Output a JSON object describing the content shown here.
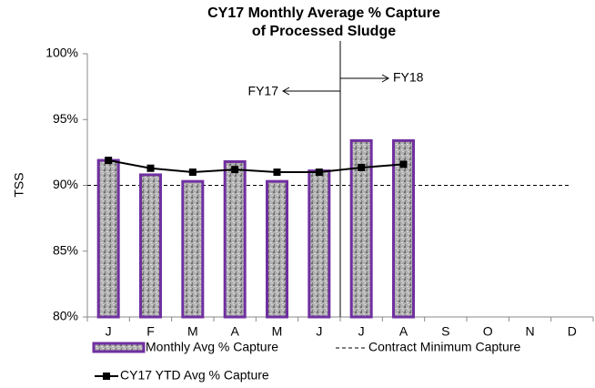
{
  "chart_data": {
    "type": "bar_line",
    "title": [
      "CY17 Monthly Average % Capture",
      "of Processed Sludge"
    ],
    "y_label": "TSS",
    "categories": [
      "J",
      "F",
      "M",
      "A",
      "M",
      "J",
      "J",
      "A",
      "S",
      "O",
      "N",
      "D"
    ],
    "series": [
      {
        "name": "Monthly Avg % Capture",
        "type": "bar",
        "color": "#7030a0",
        "values": [
          91.9,
          90.8,
          90.3,
          91.8,
          90.3,
          91.1,
          93.4,
          93.4,
          null,
          null,
          null,
          null
        ]
      },
      {
        "name": "CY17 YTD Avg % Capture",
        "type": "line",
        "color": "#000000",
        "values": [
          91.9,
          91.3,
          91.0,
          91.2,
          91.0,
          91.0,
          91.35,
          91.6,
          null,
          null,
          null,
          null
        ]
      }
    ],
    "reference_line": {
      "name": "Contract Minimum Capture",
      "value": 90
    },
    "annotations": [
      "FY17",
      "FY18"
    ],
    "ylim": [
      80,
      100
    ],
    "yticks": [
      {
        "value": 80,
        "label": "80%"
      },
      {
        "value": 85,
        "label": "85%"
      },
      {
        "value": 90,
        "label": "90%"
      },
      {
        "value": 95,
        "label": "95%"
      },
      {
        "value": 100,
        "label": "100%"
      }
    ]
  }
}
